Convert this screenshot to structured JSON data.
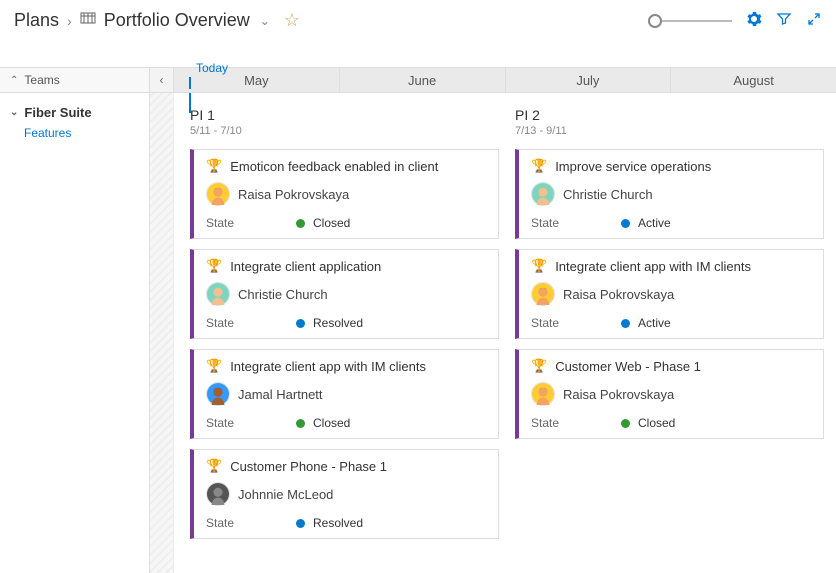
{
  "colors": {
    "accent_purple": "#773b93",
    "link_blue": "#0078d4",
    "state_closed": "#339933",
    "state_resolved": "#007acc",
    "state_active": "#007acc"
  },
  "header": {
    "breadcrumb_root": "Plans",
    "title": "Portfolio Overview"
  },
  "timeline": {
    "today_label": "Today",
    "teams_label": "Teams",
    "months": [
      "May",
      "June",
      "July",
      "August"
    ]
  },
  "sidebar": {
    "team": "Fiber Suite",
    "sub": "Features"
  },
  "avatars": {
    "raisa": {
      "bg": "#ffcc33",
      "face": "#f4a460",
      "hair": "#3a2a1a"
    },
    "christie": {
      "bg": "#7fd4c1",
      "face": "#f0c090",
      "hair": "#e8d060"
    },
    "jamal": {
      "bg": "#3399ff",
      "face": "#a06030",
      "hair": "#2a1a10"
    },
    "johnnie": {
      "bg": "#555555",
      "face": "#888888",
      "hair": "#222222"
    }
  },
  "columns": [
    {
      "title": "PI 1",
      "range": "5/11 - 7/10",
      "cards": [
        {
          "title": "Emoticon feedback enabled in client",
          "assignee": "Raisa Pokrovskaya",
          "avatar": "raisa",
          "state": "Closed",
          "state_color": "#339933"
        },
        {
          "title": "Integrate client application",
          "assignee": "Christie Church",
          "avatar": "christie",
          "state": "Resolved",
          "state_color": "#007acc"
        },
        {
          "title": "Integrate client app with IM clients",
          "assignee": "Jamal Hartnett",
          "avatar": "jamal",
          "state": "Closed",
          "state_color": "#339933"
        },
        {
          "title": "Customer Phone - Phase 1",
          "assignee": "Johnnie McLeod",
          "avatar": "johnnie",
          "state": "Resolved",
          "state_color": "#007acc"
        }
      ]
    },
    {
      "title": "PI 2",
      "range": "7/13 - 9/11",
      "cards": [
        {
          "title": "Improve service operations",
          "assignee": "Christie Church",
          "avatar": "christie",
          "state": "Active",
          "state_color": "#007acc"
        },
        {
          "title": "Integrate client app with IM clients",
          "assignee": "Raisa Pokrovskaya",
          "avatar": "raisa",
          "state": "Active",
          "state_color": "#007acc"
        },
        {
          "title": "Customer Web - Phase 1",
          "assignee": "Raisa Pokrovskaya",
          "avatar": "raisa",
          "state": "Closed",
          "state_color": "#339933"
        }
      ]
    }
  ],
  "labels": {
    "state": "State"
  }
}
